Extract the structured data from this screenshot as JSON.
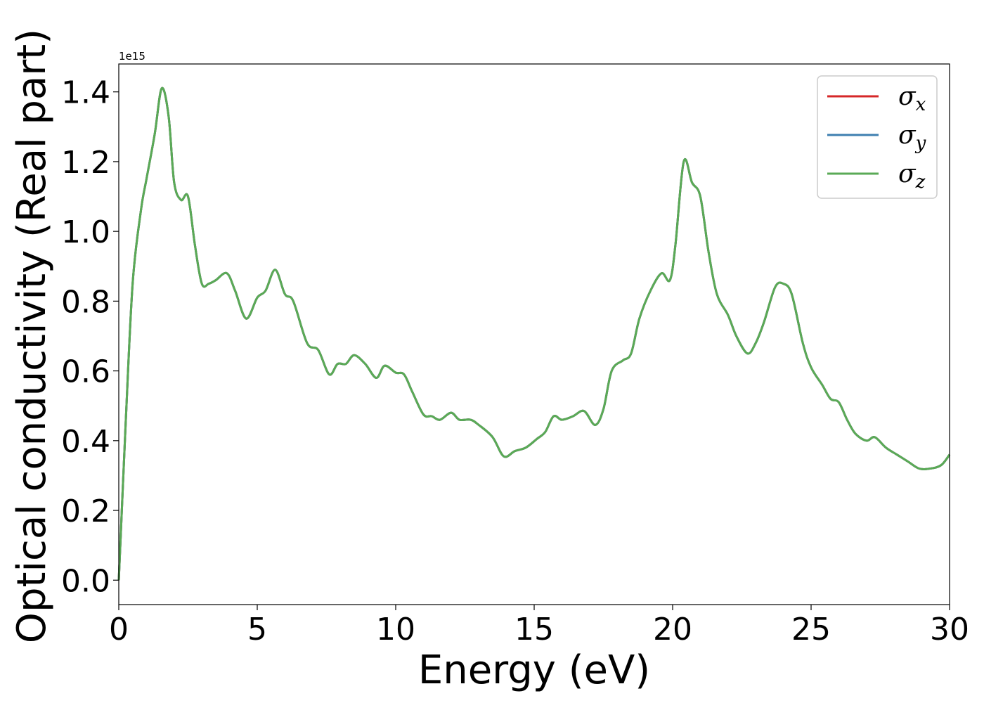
{
  "chart_data": {
    "type": "line",
    "xlabel": "Energy (eV)",
    "ylabel": "Optical conductivity (Real part)",
    "y_offset_label": "1e15",
    "xlim": [
      0,
      30
    ],
    "ylim": [
      -0.07,
      1.48
    ],
    "xticks": [
      0,
      5,
      10,
      15,
      20,
      25,
      30
    ],
    "yticks": [
      0.0,
      0.2,
      0.4,
      0.6,
      0.8,
      1.0,
      1.2,
      1.4
    ],
    "ytick_labels": [
      "0.0",
      "0.2",
      "0.4",
      "0.6",
      "0.8",
      "1.0",
      "1.2",
      "1.4"
    ],
    "grid": false,
    "legend_position": "top-right",
    "x": [
      0,
      0.25,
      0.5,
      0.8,
      1.0,
      1.3,
      1.55,
      1.8,
      2.0,
      2.25,
      2.5,
      2.75,
      3.0,
      3.25,
      3.5,
      3.9,
      4.2,
      4.6,
      5.0,
      5.3,
      5.65,
      6.0,
      6.3,
      6.8,
      7.2,
      7.6,
      7.9,
      8.2,
      8.5,
      8.9,
      9.3,
      9.6,
      10.0,
      10.3,
      10.6,
      11.0,
      11.3,
      11.6,
      12.0,
      12.3,
      12.7,
      13.0,
      13.5,
      13.9,
      14.3,
      14.7,
      15.1,
      15.4,
      15.7,
      16.0,
      16.4,
      16.8,
      17.2,
      17.5,
      17.8,
      18.2,
      18.5,
      18.8,
      19.2,
      19.6,
      19.9,
      20.1,
      20.4,
      20.7,
      21.0,
      21.3,
      21.6,
      22.0,
      22.3,
      22.7,
      23.0,
      23.3,
      23.7,
      24.0,
      24.3,
      24.7,
      25.0,
      25.4,
      25.7,
      26.0,
      26.3,
      26.6,
      27.0,
      27.3,
      27.7,
      28.1,
      28.5,
      28.9,
      29.3,
      29.7,
      30.0
    ],
    "series": [
      {
        "name": "σx",
        "color": "#d62728",
        "values": [
          0.0,
          0.45,
          0.85,
          1.06,
          1.15,
          1.28,
          1.41,
          1.33,
          1.14,
          1.09,
          1.1,
          0.96,
          0.85,
          0.85,
          0.86,
          0.88,
          0.83,
          0.75,
          0.81,
          0.83,
          0.89,
          0.82,
          0.8,
          0.68,
          0.66,
          0.59,
          0.62,
          0.62,
          0.645,
          0.62,
          0.58,
          0.615,
          0.595,
          0.59,
          0.54,
          0.475,
          0.47,
          0.46,
          0.48,
          0.46,
          0.46,
          0.445,
          0.41,
          0.355,
          0.37,
          0.38,
          0.405,
          0.425,
          0.47,
          0.46,
          0.47,
          0.485,
          0.445,
          0.49,
          0.6,
          0.63,
          0.65,
          0.75,
          0.83,
          0.88,
          0.86,
          0.96,
          1.2,
          1.14,
          1.1,
          0.94,
          0.82,
          0.76,
          0.7,
          0.65,
          0.68,
          0.74,
          0.84,
          0.85,
          0.82,
          0.68,
          0.61,
          0.56,
          0.52,
          0.51,
          0.46,
          0.42,
          0.4,
          0.41,
          0.38,
          0.36,
          0.34,
          0.32,
          0.32,
          0.33,
          0.36
        ]
      },
      {
        "name": "σy",
        "color": "#3e7fb0",
        "values": [
          0.0,
          0.45,
          0.85,
          1.06,
          1.15,
          1.28,
          1.41,
          1.33,
          1.14,
          1.09,
          1.1,
          0.96,
          0.85,
          0.85,
          0.86,
          0.88,
          0.83,
          0.75,
          0.81,
          0.83,
          0.89,
          0.82,
          0.8,
          0.68,
          0.66,
          0.59,
          0.62,
          0.62,
          0.645,
          0.62,
          0.58,
          0.615,
          0.595,
          0.59,
          0.54,
          0.475,
          0.47,
          0.46,
          0.48,
          0.46,
          0.46,
          0.445,
          0.41,
          0.355,
          0.37,
          0.38,
          0.405,
          0.425,
          0.47,
          0.46,
          0.47,
          0.485,
          0.445,
          0.49,
          0.6,
          0.63,
          0.65,
          0.75,
          0.83,
          0.88,
          0.86,
          0.96,
          1.2,
          1.14,
          1.1,
          0.94,
          0.82,
          0.76,
          0.7,
          0.65,
          0.68,
          0.74,
          0.84,
          0.85,
          0.82,
          0.68,
          0.61,
          0.56,
          0.52,
          0.51,
          0.46,
          0.42,
          0.4,
          0.41,
          0.38,
          0.36,
          0.34,
          0.32,
          0.32,
          0.33,
          0.36
        ]
      },
      {
        "name": "σz",
        "color": "#5aaa56",
        "values": [
          0.0,
          0.45,
          0.85,
          1.06,
          1.15,
          1.28,
          1.41,
          1.33,
          1.14,
          1.09,
          1.1,
          0.96,
          0.85,
          0.85,
          0.86,
          0.88,
          0.83,
          0.75,
          0.81,
          0.83,
          0.89,
          0.82,
          0.8,
          0.68,
          0.66,
          0.59,
          0.62,
          0.62,
          0.645,
          0.62,
          0.58,
          0.615,
          0.595,
          0.59,
          0.54,
          0.475,
          0.47,
          0.46,
          0.48,
          0.46,
          0.46,
          0.445,
          0.41,
          0.355,
          0.37,
          0.38,
          0.405,
          0.425,
          0.47,
          0.46,
          0.47,
          0.485,
          0.445,
          0.49,
          0.6,
          0.63,
          0.65,
          0.75,
          0.83,
          0.88,
          0.86,
          0.96,
          1.2,
          1.14,
          1.1,
          0.94,
          0.82,
          0.76,
          0.7,
          0.65,
          0.68,
          0.74,
          0.84,
          0.85,
          0.82,
          0.68,
          0.61,
          0.56,
          0.52,
          0.51,
          0.46,
          0.42,
          0.4,
          0.41,
          0.38,
          0.36,
          0.34,
          0.32,
          0.32,
          0.33,
          0.36
        ]
      }
    ],
    "legend": [
      {
        "symbol": "σ",
        "sub": "x"
      },
      {
        "symbol": "σ",
        "sub": "y"
      },
      {
        "symbol": "σ",
        "sub": "z"
      }
    ]
  }
}
